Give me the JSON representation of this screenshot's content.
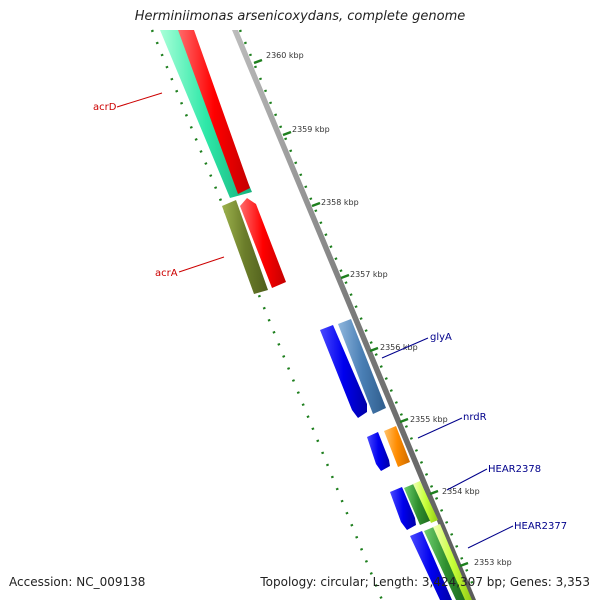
{
  "title": "Herminiimonas arsenicoxydans, complete genome",
  "footer": {
    "accession": "Accession: NC_009138",
    "summary": "Topology: circular; Length: 3,424,307 bp; Genes: 3,353"
  },
  "ticks": [
    {
      "label": "2360 kbp"
    },
    {
      "label": "2359 kbp"
    },
    {
      "label": "2358 kbp"
    },
    {
      "label": "2357 kbp"
    },
    {
      "label": "2356 kbp"
    },
    {
      "label": "2355 kbp"
    },
    {
      "label": "2354 kbp"
    },
    {
      "label": "2353 kbp"
    }
  ],
  "genes": [
    {
      "name": "acrD",
      "color": "#cc0000"
    },
    {
      "name": "acrA",
      "color": "#cc0000"
    },
    {
      "name": "glyA",
      "color": "#00008b"
    },
    {
      "name": "nrdR",
      "color": "#00008b"
    },
    {
      "name": "HEAR2378",
      "color": "#00008b"
    },
    {
      "name": "HEAR2377",
      "color": "#00008b"
    }
  ],
  "colors": {
    "backbone": "#808080",
    "forward_cds": "#ff0000",
    "reverse_cds": "#2ee8a8",
    "acrA_feature": "#6b7d2a",
    "blue_cds": "#0000ee",
    "steel_feature": "#4a7fb5",
    "orange_feature": "#ff8c00",
    "green_feature": "#2f8f2f",
    "lime_feature": "#c6ff3a",
    "dotted_track": "#1e7f1e"
  }
}
